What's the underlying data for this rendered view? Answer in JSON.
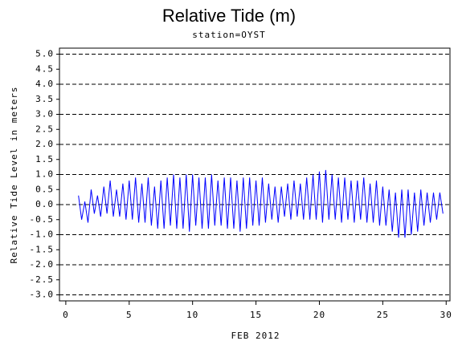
{
  "chart_data": {
    "type": "line",
    "title": "Relative Tide (m)",
    "subtitle": "station=OYST",
    "y_label": "Relative Tide Level in meters",
    "x_label": "FEB 2012",
    "color": "#0000ff",
    "grid": true,
    "xlim": [
      -0.5,
      30.3
    ],
    "xticks": [
      0,
      5,
      10,
      15,
      20,
      25,
      30
    ],
    "ylim": [
      -3.2,
      5.2
    ],
    "yticks": [
      {
        "value": 5,
        "label": "5.0"
      },
      {
        "value": 4.5,
        "label": "4.5"
      },
      {
        "value": 4,
        "label": "4.0"
      },
      {
        "value": 3.5,
        "label": "3.5"
      },
      {
        "value": 3,
        "label": "3.0"
      },
      {
        "value": 2.5,
        "label": "2.5"
      },
      {
        "value": 2,
        "label": "2.0"
      },
      {
        "value": 1.5,
        "label": "1.5"
      },
      {
        "value": 1,
        "label": "1.0"
      },
      {
        "value": 0.5,
        "label": "0.5"
      },
      {
        "value": 0,
        "label": "0.0"
      },
      {
        "value": -0.5,
        "label": "-0.5"
      },
      {
        "value": -1,
        "label": "-1.0"
      },
      {
        "value": -1.5,
        "label": "-1.5"
      },
      {
        "value": -2,
        "label": "-2.0"
      },
      {
        "value": -2.5,
        "label": "-2.5"
      },
      {
        "value": -3,
        "label": "-3.0"
      }
    ],
    "x": [
      1,
      1.25,
      1.5,
      1.75,
      2,
      2.25,
      2.5,
      2.75,
      3,
      3.25,
      3.5,
      3.75,
      4,
      4.25,
      4.5,
      4.75,
      5,
      5.25,
      5.5,
      5.75,
      6,
      6.25,
      6.5,
      6.75,
      7,
      7.25,
      7.5,
      7.75,
      8,
      8.25,
      8.5,
      8.75,
      9,
      9.25,
      9.5,
      9.75,
      10,
      10.25,
      10.5,
      10.75,
      11,
      11.25,
      11.5,
      11.75,
      12,
      12.25,
      12.5,
      12.75,
      13,
      13.25,
      13.5,
      13.75,
      14,
      14.25,
      14.5,
      14.75,
      15,
      15.25,
      15.5,
      15.75,
      16,
      16.25,
      16.5,
      16.75,
      17,
      17.25,
      17.5,
      17.75,
      18,
      18.25,
      18.5,
      18.75,
      19,
      19.25,
      19.5,
      19.75,
      20,
      20.25,
      20.5,
      20.75,
      21,
      21.25,
      21.5,
      21.75,
      22,
      22.25,
      22.5,
      22.75,
      23,
      23.25,
      23.5,
      23.75,
      24,
      24.25,
      24.5,
      24.75,
      25,
      25.25,
      25.5,
      25.75,
      26,
      26.25,
      26.5,
      26.75,
      27,
      27.25,
      27.5,
      27.75,
      28,
      28.25,
      28.5,
      28.75,
      29,
      29.25,
      29.5,
      29.75
    ],
    "values": [
      0.3,
      -0.5,
      0.1,
      -0.6,
      0.5,
      -0.3,
      0.3,
      -0.4,
      0.6,
      -0.3,
      0.8,
      -0.4,
      0.5,
      -0.4,
      0.7,
      -0.5,
      0.8,
      -0.5,
      0.9,
      -0.6,
      0.7,
      -0.6,
      0.9,
      -0.7,
      0.6,
      -0.8,
      0.8,
      -0.8,
      0.9,
      -0.7,
      1.0,
      -0.8,
      0.9,
      -0.8,
      1.0,
      -0.9,
      1.0,
      -0.7,
      0.9,
      -0.8,
      0.9,
      -0.8,
      1.0,
      -0.7,
      0.8,
      -0.7,
      0.9,
      -0.8,
      0.9,
      -0.8,
      0.8,
      -0.9,
      0.9,
      -0.8,
      0.9,
      -0.7,
      0.8,
      -0.7,
      0.9,
      -0.6,
      0.7,
      -0.5,
      0.6,
      -0.6,
      0.6,
      -0.4,
      0.7,
      -0.5,
      0.8,
      -0.4,
      0.7,
      -0.5,
      0.9,
      -0.5,
      1.0,
      -0.5,
      1.1,
      -0.6,
      1.15,
      -0.5,
      1.0,
      -0.5,
      0.9,
      -0.6,
      0.9,
      -0.5,
      0.8,
      -0.6,
      0.8,
      -0.5,
      0.9,
      -0.6,
      0.7,
      -0.6,
      0.8,
      -0.7,
      0.6,
      -0.7,
      0.5,
      -0.9,
      0.4,
      -1.1,
      0.5,
      -1.1,
      0.5,
      -1.0,
      0.4,
      -0.9,
      0.5,
      -0.7,
      0.4,
      -0.6,
      0.4,
      -0.5,
      0.4,
      -0.3
    ]
  }
}
